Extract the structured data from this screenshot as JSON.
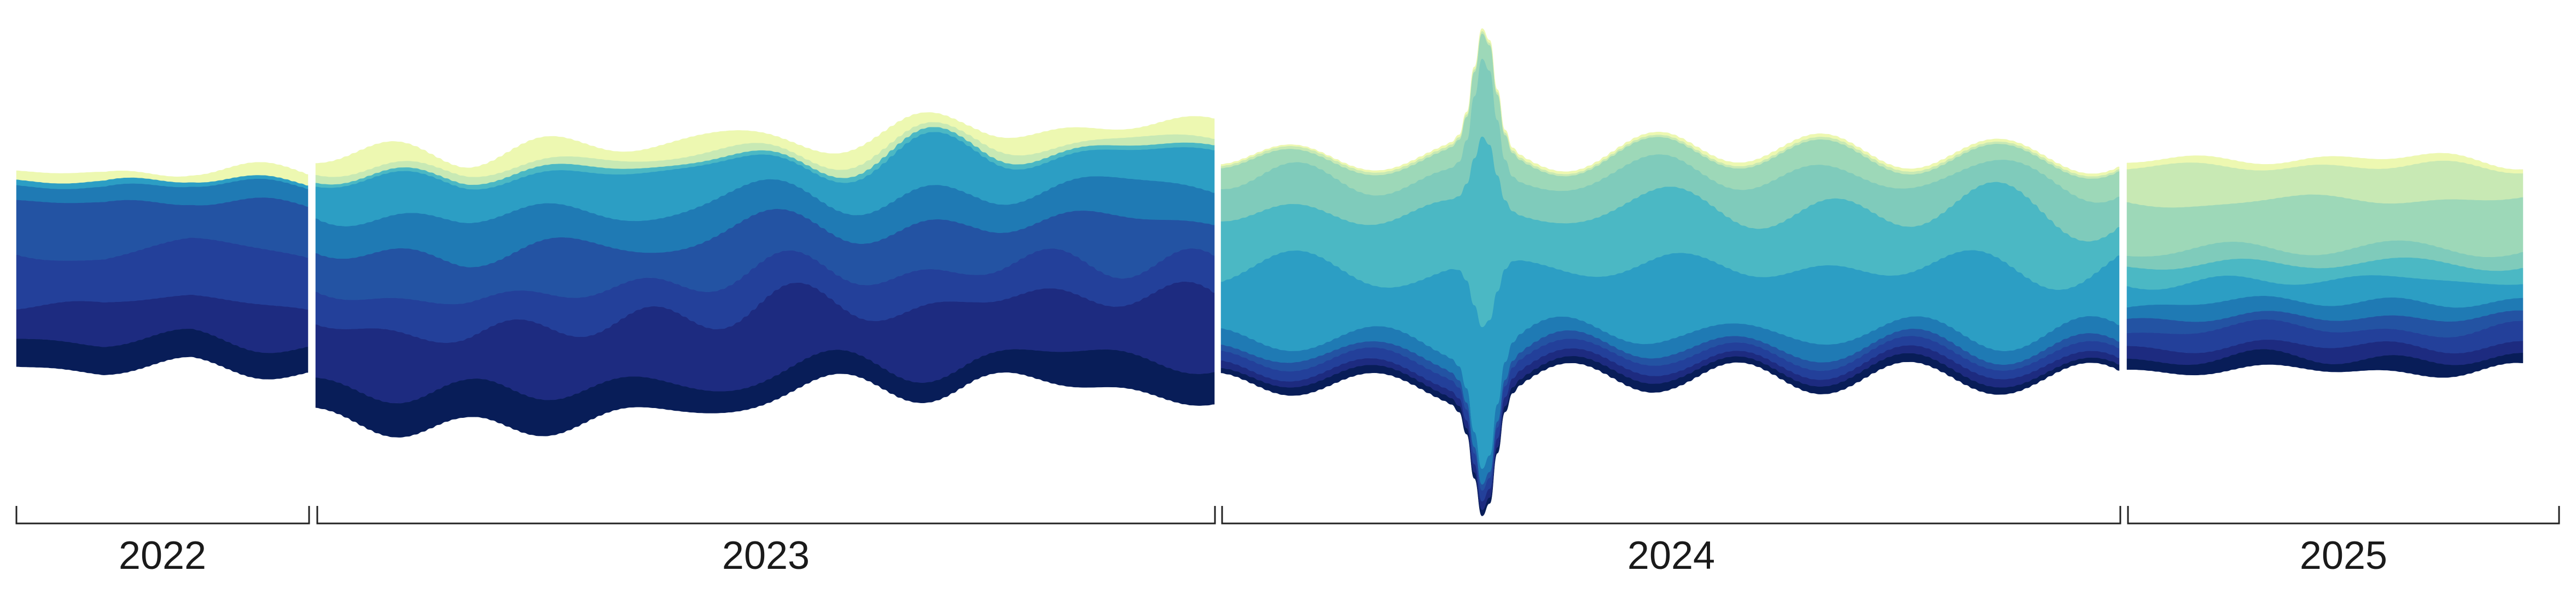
{
  "chart_data": {
    "type": "area",
    "subtype": "streamgraph",
    "title": "",
    "xlabel": "",
    "ylabel": "",
    "x_axis": "year brackets at bottom",
    "grid": false,
    "legend": "none",
    "year_labels": [
      "2022",
      "2023",
      "2024",
      "2025"
    ],
    "palette": [
      "#081d58",
      "#1d2b80",
      "#23409a",
      "#2353a3",
      "#1f7ab4",
      "#2c9ec4",
      "#4bb8c4",
      "#7fcbbb",
      "#9dd8b8",
      "#c8e9b4",
      "#edf8b1"
    ],
    "segments": [
      {
        "year": "2022",
        "x_range": [
          0,
          100
        ],
        "center_trend": [
          [
            0,
            0.02
          ],
          [
            30,
            0.0
          ],
          [
            60,
            0.03
          ],
          [
            100,
            0.0
          ]
        ],
        "series": [
          {
            "amp": 0.11,
            "var": 0.3,
            "seed": 11
          },
          {
            "amp": 0.16,
            "var": 0.3,
            "seed": 12
          },
          {
            "amp": 0.22,
            "var": 0.3,
            "seed": 13
          },
          {
            "amp": 0.2,
            "var": 0.3,
            "seed": 14
          },
          {
            "amp": 0.07,
            "var": 0.3,
            "seed": 15
          },
          {
            "amp": 0.02,
            "var": 0.3,
            "seed": 16
          },
          {
            "amp": 0.0,
            "var": 0.0,
            "seed": 17
          },
          {
            "amp": 0.0,
            "var": 0.0,
            "seed": 18
          },
          {
            "amp": 0.0,
            "var": 0.0,
            "seed": 19
          },
          {
            "amp": 0.0,
            "var": 0.0,
            "seed": 20
          },
          {
            "amp": 0.035,
            "var": 0.4,
            "seed": 21
          }
        ]
      },
      {
        "year": "2023",
        "x_range": [
          0,
          300
        ],
        "center_trend": [
          [
            0,
            -0.05
          ],
          [
            50,
            -0.08
          ],
          [
            150,
            0.02
          ],
          [
            220,
            0.08
          ],
          [
            300,
            0.05
          ]
        ],
        "series": [
          {
            "amp": 0.12,
            "var": 0.35,
            "seed": 31
          },
          {
            "amp": 0.26,
            "var": 0.4,
            "seed": 32
          },
          {
            "amp": 0.14,
            "var": 0.35,
            "seed": 33
          },
          {
            "amp": 0.18,
            "var": 0.35,
            "seed": 34
          },
          {
            "amp": 0.14,
            "var": 0.4,
            "seed": 35
          },
          {
            "amp": 0.15,
            "var": 0.4,
            "seed": 36
          },
          {
            "amp": 0.02,
            "var": 0.4,
            "seed": 37
          },
          {
            "amp": 0.0,
            "var": 0.0,
            "seed": 38
          },
          {
            "amp": 0.0,
            "var": 0.0,
            "seed": 39
          },
          {
            "amp": 0.03,
            "var": 0.4,
            "seed": 40
          },
          {
            "amp": 0.06,
            "var": 0.5,
            "seed": 41
          }
        ]
      },
      {
        "year": "2024",
        "x_range": [
          0,
          300
        ],
        "center_trend": [
          [
            0,
            0.02
          ],
          [
            80,
            0.0
          ],
          [
            150,
            0.05
          ],
          [
            300,
            0.02
          ]
        ],
        "spike": {
          "x": 88,
          "width": 5,
          "height": 0.95
        },
        "series": [
          {
            "amp": 0.03,
            "var": 0.3,
            "seed": 51
          },
          {
            "amp": 0.03,
            "var": 0.3,
            "seed": 52
          },
          {
            "amp": 0.04,
            "var": 0.3,
            "seed": 53
          },
          {
            "amp": 0.03,
            "var": 0.3,
            "seed": 54
          },
          {
            "amp": 0.06,
            "var": 0.35,
            "seed": 55
          },
          {
            "amp": 0.28,
            "var": 0.4,
            "seed": 56
          },
          {
            "amp": 0.24,
            "var": 0.4,
            "seed": 57
          },
          {
            "amp": 0.14,
            "var": 0.45,
            "seed": 58
          },
          {
            "amp": 0.08,
            "var": 0.45,
            "seed": 59
          },
          {
            "amp": 0.01,
            "var": 0.4,
            "seed": 60
          },
          {
            "amp": 0.01,
            "var": 0.4,
            "seed": 61
          }
        ]
      },
      {
        "year": "2025",
        "x_range": [
          0,
          130
        ],
        "center_trend": [
          [
            0,
            0.03
          ],
          [
            60,
            0.04
          ],
          [
            130,
            0.03
          ]
        ],
        "series": [
          {
            "amp": 0.05,
            "var": 0.35,
            "seed": 71
          },
          {
            "amp": 0.05,
            "var": 0.35,
            "seed": 72
          },
          {
            "amp": 0.07,
            "var": 0.35,
            "seed": 73
          },
          {
            "amp": 0.05,
            "var": 0.35,
            "seed": 74
          },
          {
            "amp": 0.06,
            "var": 0.35,
            "seed": 75
          },
          {
            "amp": 0.09,
            "var": 0.4,
            "seed": 76
          },
          {
            "amp": 0.07,
            "var": 0.4,
            "seed": 77
          },
          {
            "amp": 0.06,
            "var": 0.4,
            "seed": 78
          },
          {
            "amp": 0.2,
            "var": 0.4,
            "seed": 79
          },
          {
            "amp": 0.14,
            "var": 0.45,
            "seed": 80
          },
          {
            "amp": 0.03,
            "var": 0.45,
            "seed": 81
          }
        ]
      }
    ]
  }
}
